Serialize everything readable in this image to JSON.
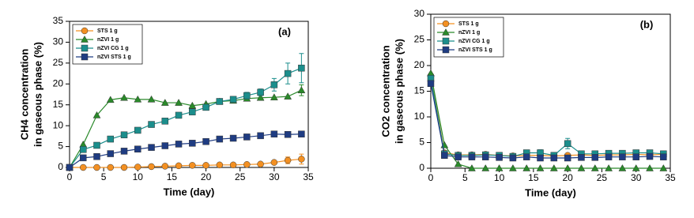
{
  "chart_data": [
    {
      "type": "line",
      "annotation": "(a)",
      "x_label": "Time (day)",
      "y_label": [
        "CH4 concentration",
        "in gaseous phase (%)"
      ],
      "x": [
        0,
        2,
        4,
        6,
        8,
        10,
        12,
        14,
        16,
        18,
        20,
        22,
        24,
        26,
        28,
        30,
        32,
        34
      ],
      "xlim": [
        0,
        35
      ],
      "xticks": [
        0,
        5,
        10,
        15,
        20,
        25,
        30,
        35
      ],
      "ylim": [
        0,
        35
      ],
      "yticks": [
        0,
        5,
        10,
        15,
        20,
        25,
        30,
        35
      ],
      "legend": "upper left",
      "series": [
        {
          "name": "STS 1 g",
          "color": "#f39022",
          "marker": "circle",
          "values": [
            0,
            0,
            0,
            0,
            0,
            0.1,
            0.2,
            0.3,
            0.4,
            0.5,
            0.5,
            0.6,
            0.6,
            0.7,
            0.8,
            1.2,
            1.7,
            2.0
          ],
          "errors": [
            null,
            null,
            null,
            null,
            null,
            null,
            null,
            null,
            null,
            null,
            null,
            null,
            null,
            null,
            null,
            null,
            0.8,
            1.2
          ]
        },
        {
          "name": "nZVI 1 g",
          "color": "#2a8a2a",
          "marker": "triangle",
          "values": [
            0,
            5.5,
            12.5,
            16.2,
            16.7,
            16.3,
            16.3,
            15.5,
            15.5,
            14.8,
            15.2,
            15.8,
            16.0,
            16.5,
            16.7,
            16.8,
            17.0,
            18.5
          ],
          "errors": [
            null,
            null,
            null,
            null,
            null,
            null,
            null,
            null,
            null,
            null,
            null,
            null,
            null,
            null,
            null,
            null,
            null,
            1.3
          ]
        },
        {
          "name": "nZVI CG 1 g",
          "color": "#1b8e8c",
          "marker": "square",
          "values": [
            0,
            4.3,
            5.3,
            6.8,
            7.8,
            8.9,
            10.3,
            11.1,
            12.5,
            13.3,
            14.4,
            15.8,
            16.3,
            17.2,
            18.0,
            19.8,
            22.5,
            23.8
          ],
          "errors": [
            null,
            null,
            null,
            null,
            null,
            null,
            null,
            null,
            0.5,
            null,
            null,
            null,
            null,
            0.8,
            0.8,
            1.5,
            2.5,
            3.5
          ]
        },
        {
          "name": "nZVI STS 1 g",
          "color": "#1f3c82",
          "marker": "square",
          "values": [
            0,
            2.3,
            2.6,
            3.3,
            3.9,
            4.4,
            4.8,
            5.2,
            5.6,
            5.8,
            6.2,
            6.8,
            7.0,
            7.3,
            7.6,
            8.0,
            7.9,
            8.0
          ],
          "errors": [
            null,
            null,
            null,
            null,
            null,
            null,
            null,
            null,
            null,
            null,
            null,
            null,
            null,
            null,
            null,
            null,
            null,
            null
          ]
        }
      ]
    },
    {
      "type": "line",
      "annotation": "(b)",
      "x_label": "Time (day)",
      "y_label": [
        "CO2 concentration",
        "in gaseous phase (%)"
      ],
      "x": [
        0,
        2,
        4,
        6,
        8,
        10,
        12,
        14,
        16,
        18,
        20,
        22,
        24,
        26,
        28,
        30,
        32,
        34
      ],
      "xlim": [
        0,
        35
      ],
      "xticks": [
        0,
        5,
        10,
        15,
        20,
        25,
        30,
        35
      ],
      "ylim": [
        0,
        30
      ],
      "yticks": [
        0,
        5,
        10,
        15,
        20,
        25,
        30
      ],
      "legend": "upper left",
      "series": [
        {
          "name": "STS 1 g",
          "color": "#f39022",
          "marker": "circle",
          "values": [
            18,
            3,
            2.6,
            2.6,
            2.7,
            2.5,
            2.4,
            2.5,
            2.5,
            2.4,
            2.5,
            2.6,
            2.5,
            2.6,
            2.6,
            2.7,
            2.6,
            2.7
          ],
          "errors": [
            null,
            null,
            null,
            null,
            null,
            null,
            null,
            null,
            null,
            null,
            null,
            null,
            null,
            null,
            null,
            null,
            null,
            null
          ]
        },
        {
          "name": "nZVI 1 g",
          "color": "#2a8a2a",
          "marker": "triangle",
          "values": [
            18.5,
            4.5,
            0.8,
            0,
            0,
            0,
            0,
            0,
            0,
            0,
            0,
            0,
            0,
            0,
            0,
            0,
            0,
            0
          ],
          "errors": [
            null,
            null,
            null,
            null,
            null,
            null,
            null,
            null,
            null,
            null,
            null,
            null,
            null,
            null,
            null,
            null,
            null,
            null
          ]
        },
        {
          "name": "nZVI CG 1 g",
          "color": "#1b8e8c",
          "marker": "square",
          "values": [
            17.5,
            2.8,
            2.5,
            2.5,
            2.6,
            2.5,
            2.3,
            3.0,
            3.0,
            2.5,
            4.8,
            2.8,
            2.8,
            2.9,
            2.9,
            3.0,
            3.0,
            2.8
          ],
          "errors": [
            null,
            null,
            null,
            null,
            null,
            null,
            null,
            0.5,
            0.6,
            null,
            1.0,
            null,
            null,
            null,
            null,
            null,
            null,
            null
          ]
        },
        {
          "name": "nZVI STS 1 g",
          "color": "#1f3c82",
          "marker": "square",
          "values": [
            16.5,
            2.5,
            2.2,
            2.2,
            2.2,
            2.1,
            2.0,
            2.2,
            2.0,
            2.0,
            2.0,
            2.1,
            2.1,
            2.2,
            2.2,
            2.2,
            2.3,
            2.2
          ],
          "errors": [
            null,
            null,
            null,
            null,
            null,
            null,
            null,
            null,
            null,
            null,
            null,
            null,
            null,
            null,
            null,
            null,
            null,
            null
          ]
        }
      ]
    }
  ]
}
